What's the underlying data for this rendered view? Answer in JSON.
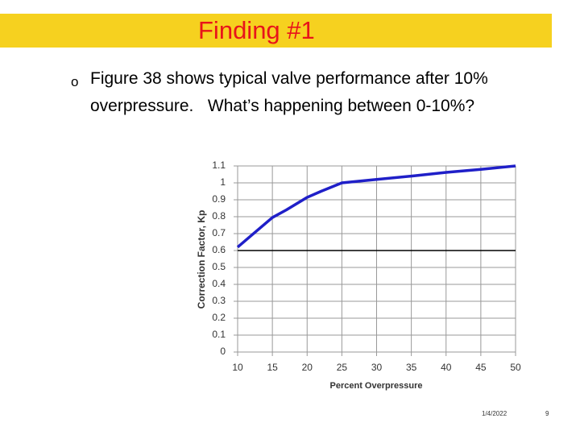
{
  "header": {
    "title": "Finding #1"
  },
  "bullets": [
    {
      "marker": "o",
      "lines": [
        "Figure 38 shows typical valve performance after 10%",
        "overpressure.   What’s happening between 0-10%?"
      ]
    }
  ],
  "chart_data": {
    "type": "line",
    "x_label": "Percent Overpressure",
    "y_label": "Correction Factor, Kp",
    "series": [
      {
        "color": "#1f1fc8",
        "x": [
          10,
          12,
          15,
          17,
          20,
          22,
          25,
          30,
          35,
          40,
          45,
          50
        ],
        "values": [
          0.62,
          0.69,
          0.795,
          0.84,
          0.914,
          0.95,
          1.0,
          1.02,
          1.04,
          1.062,
          1.08,
          1.1
        ]
      }
    ],
    "xlim": [
      10,
      50
    ],
    "xticks": [
      10,
      15,
      20,
      25,
      30,
      35,
      40,
      45,
      50
    ],
    "ylim": [
      0,
      1.1
    ],
    "yticks": [
      0,
      0.1,
      0.2,
      0.3,
      0.4,
      0.5,
      0.6,
      0.7,
      0.8,
      0.9,
      1,
      1.1
    ],
    "grid": true,
    "reference_line": 0.6
  },
  "footer": {
    "date": "1/4/2022",
    "page": "9"
  }
}
